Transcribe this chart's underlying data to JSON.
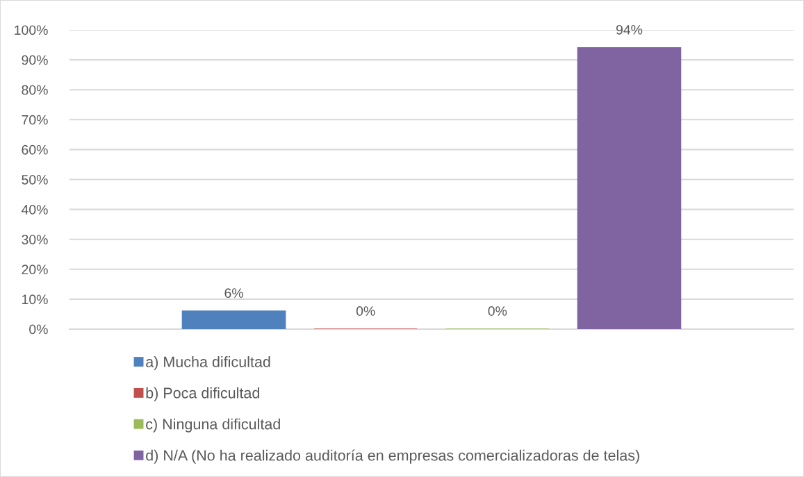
{
  "chart_data": {
    "type": "bar",
    "categories": [
      null
    ],
    "series": [
      {
        "name": "a) Mucha dificultad",
        "color": "#4f81bd",
        "values": [
          6
        ],
        "value_labels": [
          "6%"
        ]
      },
      {
        "name": "b) Poca dificultad",
        "color": "#c0504d",
        "values": [
          0
        ],
        "value_labels": [
          "0%"
        ]
      },
      {
        "name": "c) Ninguna dificultad",
        "color": "#9bbb59",
        "values": [
          0
        ],
        "value_labels": [
          "0%"
        ]
      },
      {
        "name": "d) N/A (No ha realizado auditoría en empresas comercializadoras de telas)",
        "color": "#8064a2",
        "values": [
          94
        ],
        "value_labels": [
          "94%"
        ]
      }
    ],
    "ylim": [
      0,
      100
    ],
    "yticks": [
      {
        "value": 0,
        "label": "0%"
      },
      {
        "value": 10,
        "label": "10%"
      },
      {
        "value": 20,
        "label": "20%"
      },
      {
        "value": 30,
        "label": "30%"
      },
      {
        "value": 40,
        "label": "40%"
      },
      {
        "value": 50,
        "label": "50%"
      },
      {
        "value": 60,
        "label": "60%"
      },
      {
        "value": 70,
        "label": "70%"
      },
      {
        "value": 80,
        "label": "80%"
      },
      {
        "value": 90,
        "label": "90%"
      },
      {
        "value": 100,
        "label": "100%"
      }
    ],
    "grid": "y",
    "legend": "bottom",
    "tick_labels": "y"
  }
}
